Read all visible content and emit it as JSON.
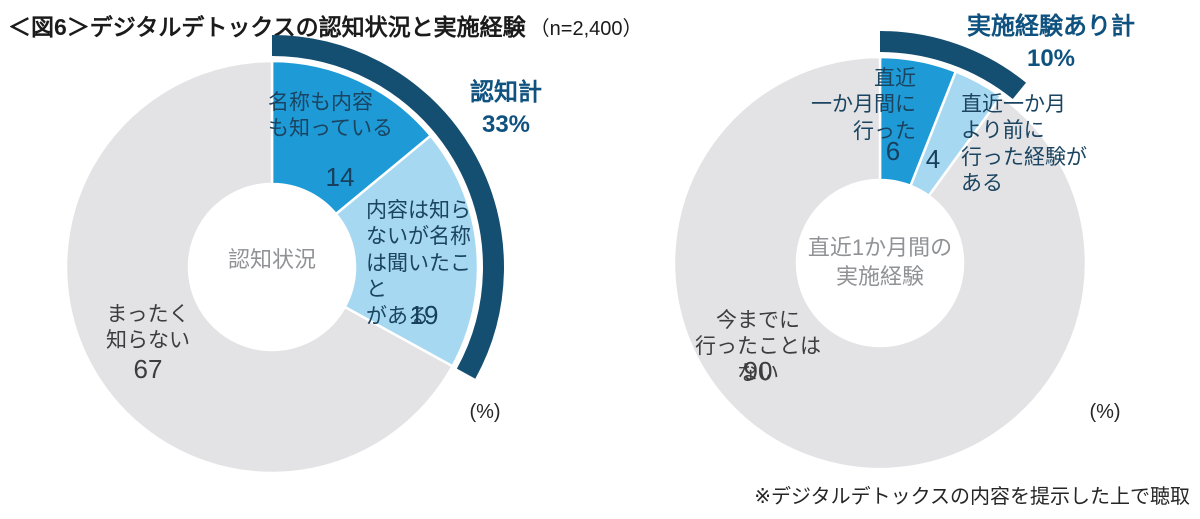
{
  "header": {
    "title": "＜図6＞デジタルデトックスの認知状況と実施経験",
    "sample": "（n=2,400）"
  },
  "footnote": "※デジタルデトックスの内容を提示した上で聴取",
  "chart_data": [
    {
      "type": "pie",
      "variant": "donut",
      "center_label": "認知状況",
      "unit_label": "(%)",
      "total": {
        "label": "認知計",
        "value": "33%"
      },
      "segments": [
        {
          "label": "名称も内容\nも知っている",
          "value": 14,
          "color": "#1e9ad7",
          "label_color": "#1b4460"
        },
        {
          "label": "内容は知ら\nないが名称\nは聞いたこと\nがある",
          "value": 19,
          "color": "#a6d8f2",
          "label_color": "#1b4460"
        },
        {
          "label": "まったく\n知らない",
          "value": 67,
          "color": "#e3e3e5",
          "label_color": "#3d3d3d"
        }
      ],
      "highlight_arc": {
        "color": "#144e71",
        "covers_percent": 33,
        "overshoot_deg": 0
      },
      "layout_hint": {
        "start_angle": "top",
        "direction": "clockwise",
        "legend": "none"
      }
    },
    {
      "type": "pie",
      "variant": "donut",
      "center_label": "直近1か月間の\n実施経験",
      "unit_label": "(%)",
      "total": {
        "label": "実施経験あり計",
        "value": "10%"
      },
      "segments": [
        {
          "label": "直近\n一か月間に\n行った",
          "value": 6,
          "color": "#1e9ad7",
          "label_color": "#1b4460"
        },
        {
          "label": "直近一か月\nより前に\n行った経験が\nある",
          "value": 4,
          "color": "#a6d8f2",
          "label_color": "#1b4460"
        },
        {
          "label": "今までに\n行ったことはない",
          "value": 90,
          "color": "#e3e3e5",
          "label_color": "#3d3d3d"
        }
      ],
      "highlight_arc": {
        "color": "#144e71",
        "covers_percent": 10,
        "overshoot_deg": 3
      },
      "layout_hint": {
        "start_angle": "top",
        "direction": "clockwise",
        "legend": "none"
      }
    }
  ]
}
